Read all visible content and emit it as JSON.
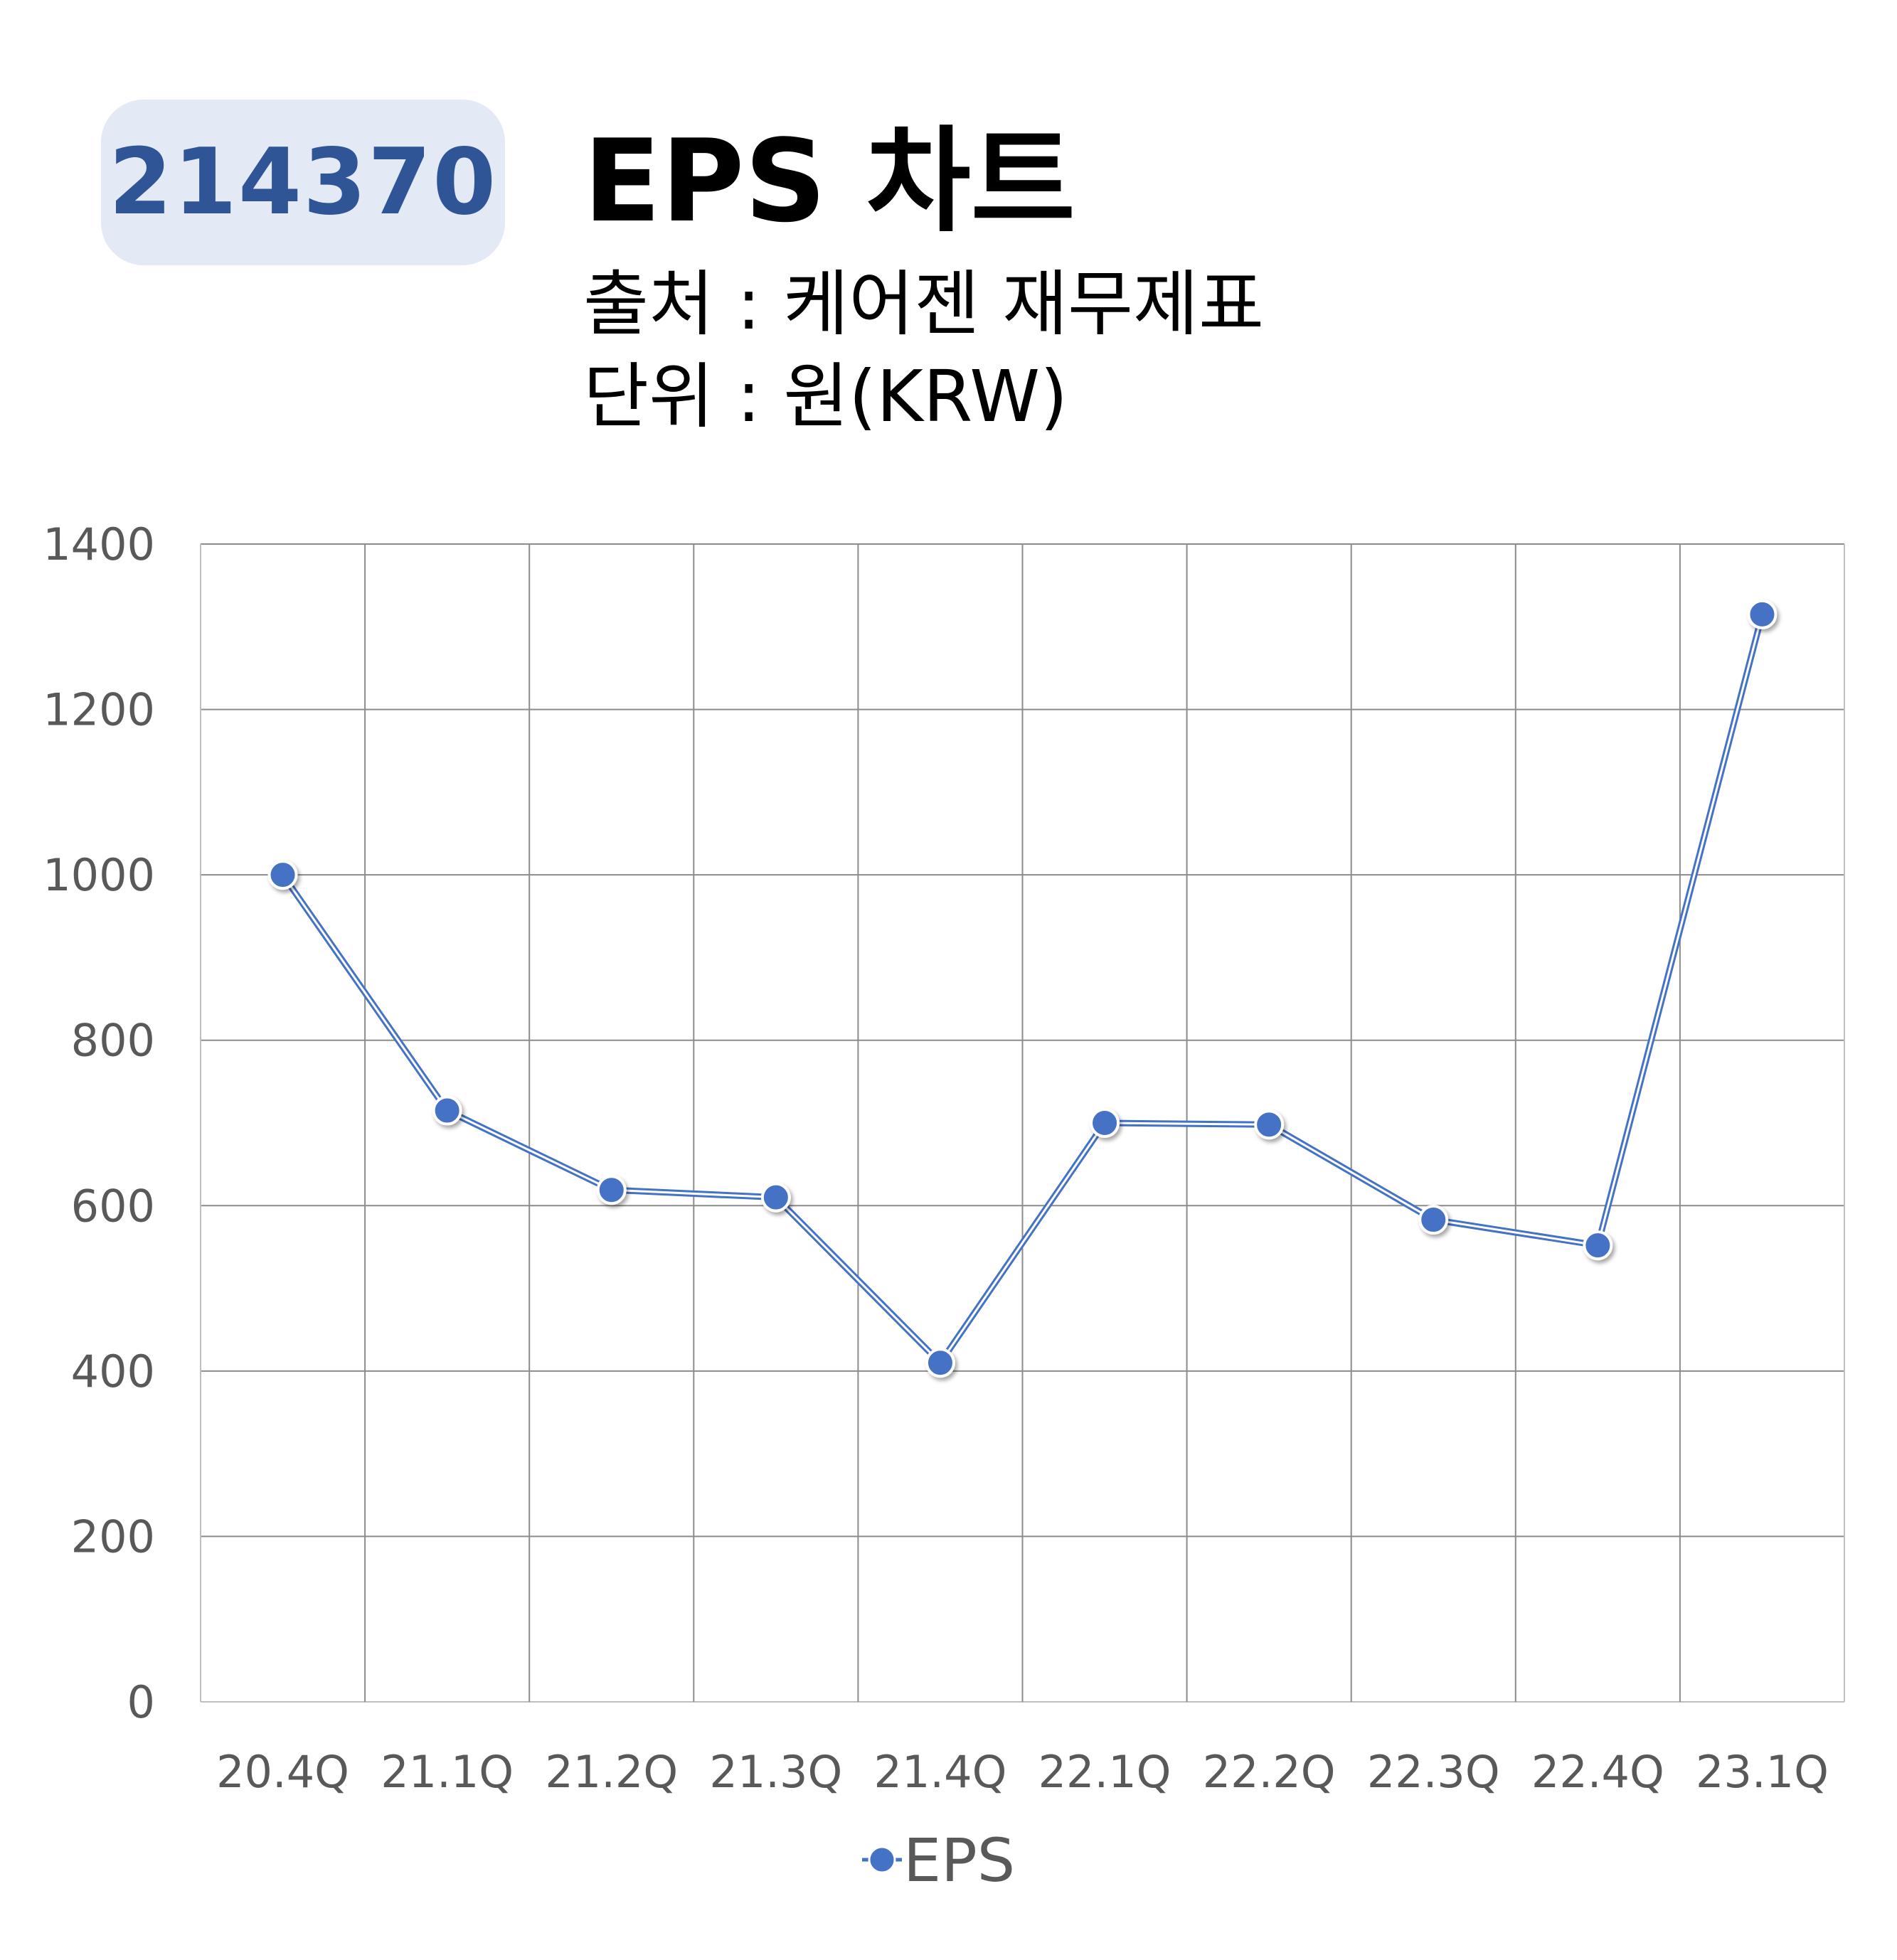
{
  "header": {
    "code": "214370",
    "title": "EPS 차트",
    "source": "출처 : 케어젠 재무제표",
    "unit": "단위 : 원(KRW)"
  },
  "colors": {
    "series": "#4472c4",
    "grid": "#8c8c8c",
    "axis_text": "#595959",
    "badge_bg": "#e3e9f5",
    "badge_text": "#2f5597"
  },
  "chart_data": {
    "type": "line",
    "categories": [
      "20.4Q",
      "21.1Q",
      "21.2Q",
      "21.3Q",
      "21.4Q",
      "22.1Q",
      "22.2Q",
      "22.3Q",
      "22.4Q",
      "23.1Q"
    ],
    "series": [
      {
        "name": "EPS",
        "values": [
          1000,
          715,
          619,
          610,
          410,
          700,
          698,
          583,
          552,
          1315
        ]
      }
    ],
    "yticks": [
      0,
      200,
      400,
      600,
      800,
      1000,
      1200,
      1400
    ],
    "ylim": [
      0,
      1400
    ],
    "grid": true,
    "legend": "bottom"
  }
}
